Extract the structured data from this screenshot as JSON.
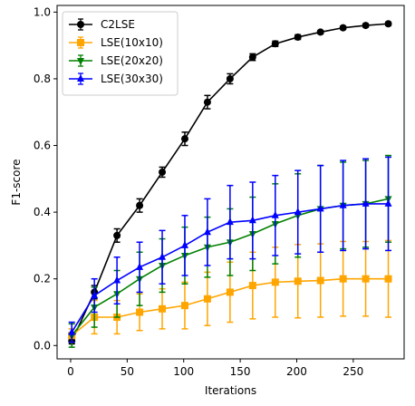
{
  "chart_data": {
    "type": "line",
    "title": "",
    "xlabel": "Iterations",
    "ylabel": "F1-score",
    "xlim": [
      -12,
      295
    ],
    "ylim": [
      -0.04,
      1.02
    ],
    "xticks": [
      0,
      50,
      100,
      150,
      200,
      250
    ],
    "yticks": [
      0.0,
      0.2,
      0.4,
      0.6,
      0.8,
      1.0
    ],
    "xtick_labels": [
      "0",
      "50",
      "100",
      "150",
      "200",
      "250"
    ],
    "ytick_labels": [
      "0.0",
      "0.2",
      "0.4",
      "0.6",
      "0.8",
      "1.0"
    ],
    "grid": false,
    "legend_position": "top-left",
    "x": [
      1,
      21,
      41,
      61,
      81,
      101,
      121,
      141,
      161,
      181,
      201,
      221,
      241,
      261,
      281
    ],
    "series": [
      {
        "name": "C2LSE",
        "color": "#000000",
        "marker": "circle",
        "values": [
          0.013,
          0.16,
          0.33,
          0.42,
          0.52,
          0.62,
          0.73,
          0.8,
          0.865,
          0.905,
          0.925,
          0.94,
          0.953,
          0.96,
          0.965
        ],
        "errors": [
          0.008,
          0.02,
          0.02,
          0.02,
          0.015,
          0.02,
          0.02,
          0.015,
          0.01,
          0.008,
          0.007,
          0.005,
          0.005,
          0.005,
          0.005
        ]
      },
      {
        "name": "LSE(10x10)",
        "color": "#ffa500",
        "marker": "square",
        "values": [
          0.03,
          0.085,
          0.085,
          0.1,
          0.11,
          0.12,
          0.14,
          0.16,
          0.18,
          0.19,
          0.193,
          0.195,
          0.2,
          0.2,
          0.2
        ],
        "errors": [
          0.02,
          0.05,
          0.05,
          0.055,
          0.06,
          0.07,
          0.08,
          0.09,
          0.1,
          0.105,
          0.11,
          0.11,
          0.112,
          0.112,
          0.115
        ]
      },
      {
        "name": "LSE(20x20)",
        "color": "#008000",
        "marker": "triangle-down",
        "values": [
          0.03,
          0.115,
          0.155,
          0.2,
          0.24,
          0.27,
          0.295,
          0.31,
          0.335,
          0.365,
          0.39,
          0.41,
          0.42,
          0.425,
          0.44
        ],
        "errors": [
          0.035,
          0.06,
          0.07,
          0.08,
          0.08,
          0.085,
          0.09,
          0.1,
          0.11,
          0.12,
          0.125,
          0.13,
          0.13,
          0.13,
          0.13
        ]
      },
      {
        "name": "LSE(30x30)",
        "color": "#0000ff",
        "marker": "triangle-up",
        "values": [
          0.04,
          0.15,
          0.195,
          0.235,
          0.265,
          0.3,
          0.34,
          0.37,
          0.375,
          0.39,
          0.4,
          0.41,
          0.42,
          0.425,
          0.425
        ],
        "errors": [
          0.03,
          0.05,
          0.07,
          0.075,
          0.08,
          0.09,
          0.1,
          0.11,
          0.115,
          0.12,
          0.125,
          0.13,
          0.135,
          0.135,
          0.14
        ]
      }
    ]
  }
}
